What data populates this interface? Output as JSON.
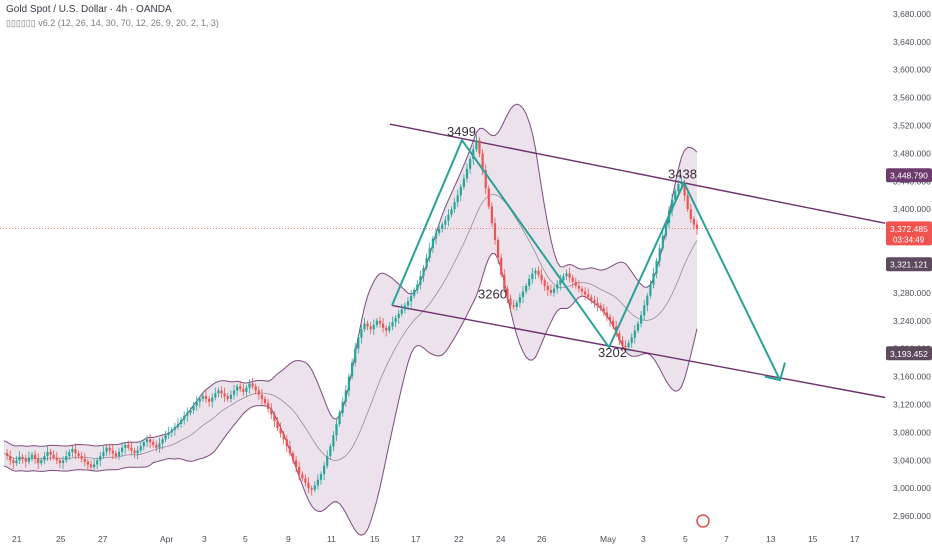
{
  "header": {
    "title": "Gold Spot / U.S. Dollar · 4h · OANDA",
    "indicator": "▯▯▯▯▯▯ v6.2 (12, 26, 14, 30, 70, 12, 26, 9, 20, 2, 1, 3)"
  },
  "colors": {
    "up": "#26a69a",
    "down": "#ef5350",
    "band_fill": "#e8dde8",
    "band_line": "#7e4a7e",
    "channel": "#6d2f6d",
    "zigzag": "#2aa198",
    "price_tag": "#ef5350",
    "level_tag": "#5d4a5d",
    "upper_tag": "#6d3a6d"
  },
  "chart_data": {
    "type": "candlestick",
    "title": "Gold Spot / U.S. Dollar · 4h · OANDA",
    "ylim": [
      2940,
      3700
    ],
    "y_ticks": [
      3680,
      3640,
      3600,
      3560,
      3520,
      3480,
      3440,
      3400,
      3360,
      3320,
      3280,
      3240,
      3200,
      3160,
      3120,
      3080,
      3040,
      3000,
      2960
    ],
    "y_tick_labels": [
      "3,680.000",
      "3,640.000",
      "3,600.000",
      "3,560.000",
      "3,520.000",
      "3,480.000",
      "3,440.000",
      "3,400.000",
      "3,360.000",
      "3,320.000",
      "3,280.000",
      "3,240.000",
      "3,200.000",
      "3,160.000",
      "3,120.000",
      "3,080.000",
      "3,040.000",
      "3,000.000",
      "2,960.000"
    ],
    "x_ticks": [
      "21",
      "25",
      "27",
      "Apr",
      "3",
      "5",
      "9",
      "11",
      "15",
      "17",
      "22",
      "24",
      "26",
      "May",
      "3",
      "5",
      "7",
      "13",
      "15",
      "17"
    ],
    "price_labels": [
      {
        "text": "3,448.790",
        "value": 3448.79,
        "style": "upper"
      },
      {
        "text": "3,372.485",
        "value": 3372.485,
        "style": "price",
        "sub": "03:34:49"
      },
      {
        "text": "3,321.121",
        "value": 3321.121,
        "style": "level"
      },
      {
        "text": "3,193.452",
        "value": 3193.452,
        "style": "level"
      }
    ],
    "annotations": [
      {
        "text": "3499",
        "value": 3499
      },
      {
        "text": "3260",
        "value": 3260
      },
      {
        "text": "3202",
        "value": 3202
      },
      {
        "text": "3438",
        "value": 3438
      }
    ],
    "close_series": [
      3050,
      3046,
      3040,
      3036,
      3040,
      3045,
      3042,
      3038,
      3044,
      3048,
      3042,
      3036,
      3040,
      3046,
      3052,
      3048,
      3044,
      3040,
      3036,
      3040,
      3046,
      3052,
      3056,
      3050,
      3046,
      3042,
      3038,
      3034,
      3030,
      3034,
      3040,
      3046,
      3052,
      3058,
      3054,
      3050,
      3046,
      3052,
      3058,
      3062,
      3058,
      3054,
      3050,
      3054,
      3060,
      3066,
      3070,
      3066,
      3062,
      3058,
      3064,
      3070,
      3076,
      3080,
      3084,
      3088,
      3092,
      3098,
      3104,
      3108,
      3112,
      3118,
      3124,
      3128,
      3132,
      3128,
      3124,
      3130,
      3136,
      3140,
      3136,
      3132,
      3128,
      3134,
      3140,
      3146,
      3142,
      3138,
      3144,
      3150,
      3146,
      3140,
      3134,
      3128,
      3122,
      3114,
      3106,
      3096,
      3086,
      3078,
      3070,
      3060,
      3050,
      3040,
      3030,
      3020,
      3014,
      3008,
      3000,
      2998,
      3004,
      3012,
      3020,
      3032,
      3046,
      3060,
      3076,
      3092,
      3108,
      3124,
      3140,
      3160,
      3180,
      3200,
      3216,
      3228,
      3236,
      3232,
      3228,
      3234,
      3240,
      3236,
      3230,
      3226,
      3232,
      3238,
      3244,
      3250,
      3256,
      3262,
      3268,
      3276,
      3284,
      3292,
      3304,
      3316,
      3330,
      3344,
      3358,
      3366,
      3372,
      3378,
      3384,
      3392,
      3400,
      3410,
      3420,
      3432,
      3444,
      3458,
      3472,
      3486,
      3499,
      3480,
      3456,
      3430,
      3404,
      3380,
      3356,
      3330,
      3306,
      3286,
      3272,
      3262,
      3260,
      3266,
      3274,
      3282,
      3290,
      3300,
      3308,
      3312,
      3306,
      3298,
      3290,
      3284,
      3280,
      3286,
      3292,
      3298,
      3304,
      3308,
      3302,
      3296,
      3290,
      3286,
      3282,
      3278,
      3274,
      3270,
      3266,
      3262,
      3258,
      3252,
      3246,
      3240,
      3232,
      3222,
      3212,
      3204,
      3202,
      3208,
      3216,
      3226,
      3236,
      3248,
      3262,
      3276,
      3292,
      3308,
      3326,
      3344,
      3362,
      3380,
      3398,
      3414,
      3426,
      3436,
      3438,
      3420,
      3400,
      3386,
      3378,
      3372
    ]
  }
}
